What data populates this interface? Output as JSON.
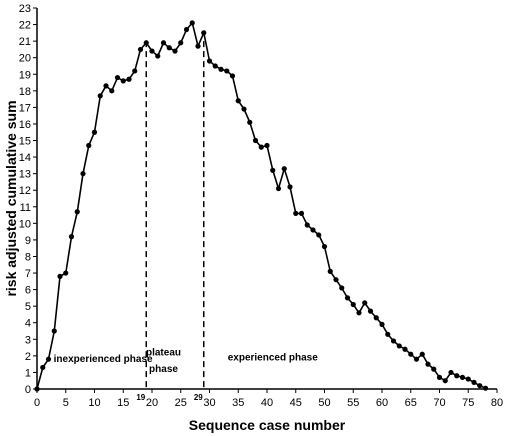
{
  "chart_data": {
    "type": "line",
    "xlabel": "Sequence case number",
    "ylabel": "risk adjusted cumulative sum",
    "xlim": [
      0,
      80
    ],
    "ylim": [
      0,
      23
    ],
    "xticks": [
      0,
      5,
      10,
      15,
      20,
      25,
      30,
      35,
      40,
      45,
      50,
      55,
      60,
      65,
      70,
      75,
      80
    ],
    "yticks": [
      0,
      1,
      2,
      3,
      4,
      5,
      6,
      7,
      8,
      9,
      10,
      11,
      12,
      13,
      14,
      15,
      16,
      17,
      18,
      19,
      20,
      21,
      22,
      23
    ],
    "grid": false,
    "marker": "circle",
    "series": [
      {
        "x": [
          0,
          1,
          2,
          3,
          4,
          5,
          6,
          7,
          8,
          9,
          10,
          11,
          12,
          13,
          14,
          15,
          16,
          17,
          18,
          19,
          20,
          21,
          22,
          23,
          24,
          25,
          26,
          27,
          28,
          29,
          30,
          31,
          32,
          33,
          34,
          35,
          36,
          37,
          38,
          39,
          40,
          41,
          42,
          43,
          44,
          45,
          46,
          47,
          48,
          49,
          50,
          51,
          52,
          53,
          54,
          55,
          56,
          57,
          58,
          59,
          60,
          61,
          62,
          63,
          64,
          65,
          66,
          67,
          68,
          69,
          70,
          71,
          72,
          73,
          74,
          75,
          76,
          77,
          78
        ],
        "y": [
          0,
          1.3,
          1.8,
          3.5,
          6.8,
          7.0,
          9.2,
          10.7,
          13.0,
          14.7,
          15.5,
          17.7,
          18.3,
          18.0,
          18.8,
          18.6,
          18.7,
          19.2,
          20.5,
          20.9,
          20.4,
          20.1,
          20.9,
          20.6,
          20.4,
          20.9,
          21.7,
          22.1,
          20.7,
          21.5,
          19.8,
          19.5,
          19.3,
          19.2,
          18.9,
          17.4,
          16.9,
          16.1,
          15.0,
          14.6,
          14.7,
          13.2,
          12.1,
          13.3,
          12.2,
          10.6,
          10.6,
          9.9,
          9.6,
          9.3,
          8.6,
          7.1,
          6.6,
          6.1,
          5.5,
          5.1,
          4.6,
          5.2,
          4.7,
          4.3,
          3.9,
          3.3,
          2.9,
          2.6,
          2.4,
          2.1,
          1.8,
          2.1,
          1.5,
          1.2,
          0.7,
          0.5,
          1.0,
          0.8,
          0.7,
          0.6,
          0.4,
          0.2,
          0.05
        ]
      }
    ],
    "vlines": [
      {
        "x": 19,
        "label": "19",
        "style": "dashed"
      },
      {
        "x": 29,
        "label": "29",
        "style": "dashed"
      }
    ],
    "annotations": [
      {
        "text": "inexperienced phase",
        "x": 11.5,
        "y": 1.8
      },
      {
        "text": "plateau",
        "x": 22,
        "y": 2.2
      },
      {
        "text": "phase",
        "x": 22,
        "y": 1.2
      },
      {
        "text": "experienced phase",
        "x": 41,
        "y": 1.9
      }
    ]
  }
}
